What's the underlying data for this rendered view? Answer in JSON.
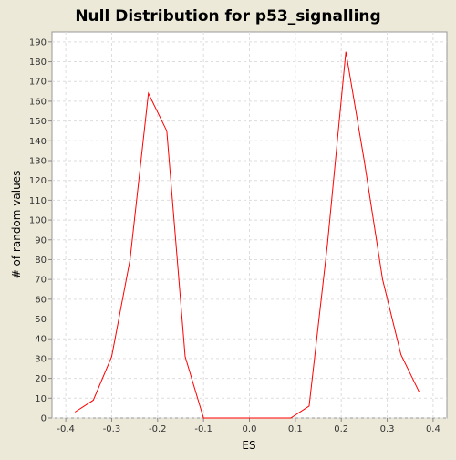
{
  "chart_data": {
    "type": "line",
    "title": "Null Distribution for p53_signalling",
    "xlabel": "ES",
    "ylabel": "# of random values",
    "xlim": [
      -0.43,
      0.43
    ],
    "ylim": [
      0,
      195
    ],
    "x_ticks": [
      "-0.4",
      "-0.3",
      "-0.2",
      "-0.1",
      "0.0",
      "0.1",
      "0.2",
      "0.3",
      "0.4"
    ],
    "y_ticks": [
      "0",
      "10",
      "20",
      "30",
      "40",
      "50",
      "60",
      "70",
      "80",
      "90",
      "100",
      "110",
      "120",
      "130",
      "140",
      "150",
      "160",
      "170",
      "180",
      "190"
    ],
    "grid": true,
    "series": [
      {
        "color": "#ff0000",
        "x": [
          -0.38,
          -0.34,
          -0.3,
          -0.26,
          -0.22,
          -0.18,
          -0.14,
          -0.1,
          -0.06,
          -0.02,
          0.02,
          0.05,
          0.09,
          0.13,
          0.17,
          0.21,
          0.25,
          0.29,
          0.33,
          0.37
        ],
        "y": [
          3,
          9,
          31,
          80,
          164,
          145,
          31,
          0,
          0,
          0,
          0,
          0,
          0,
          6,
          88,
          185,
          130,
          70,
          32,
          13
        ]
      }
    ]
  }
}
